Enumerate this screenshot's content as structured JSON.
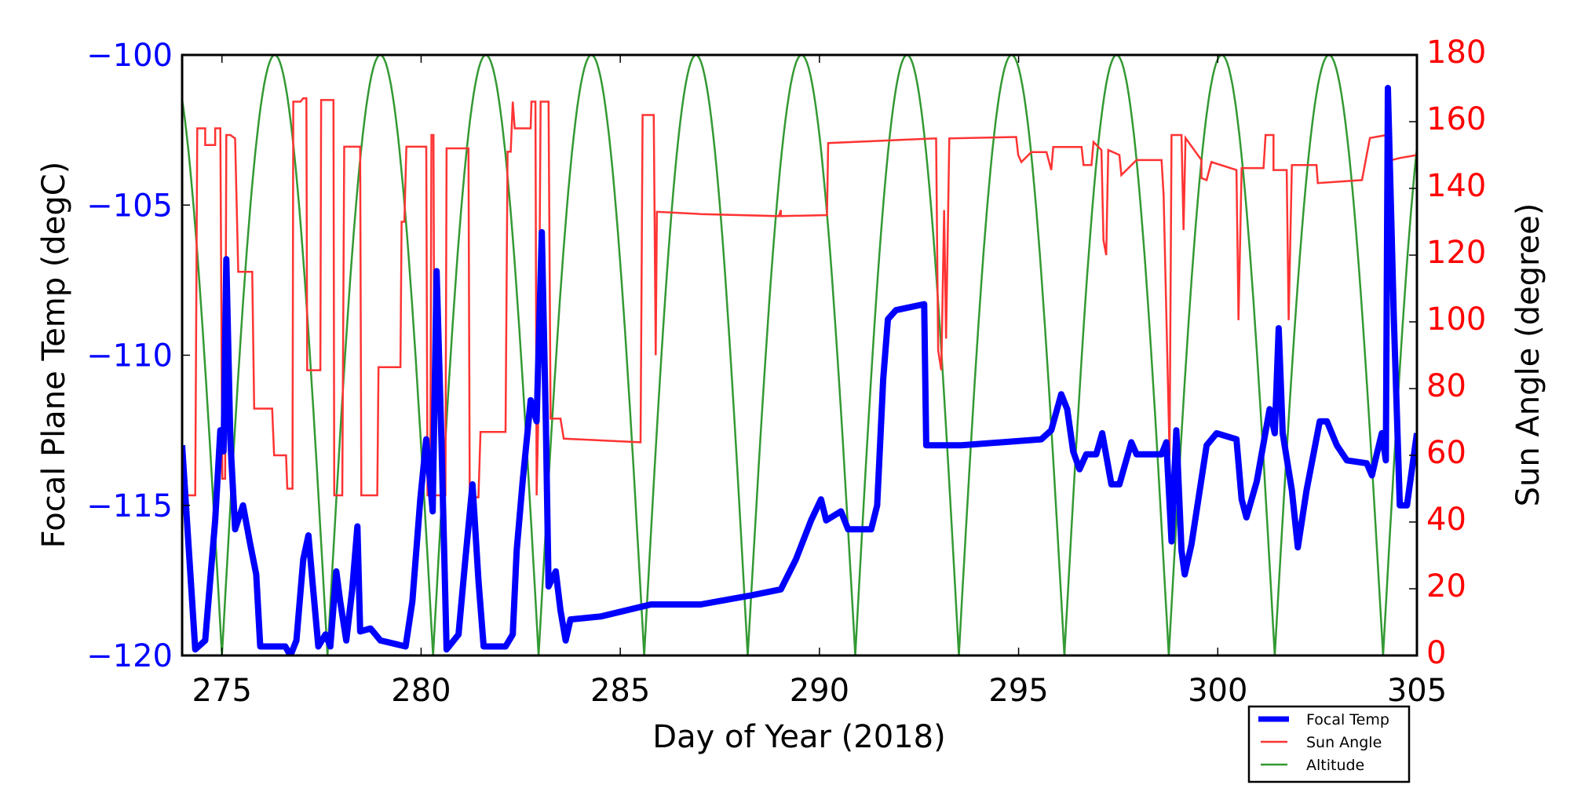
{
  "chart_data": {
    "type": "line",
    "xlabel": "Day of Year (2018)",
    "ylabel_left": "Focal Plane Temp (degC)",
    "ylabel_right": "Sun Angle (degree)",
    "xlim": [
      274,
      305
    ],
    "ylim_left": [
      -120,
      -100
    ],
    "ylim_right": [
      0,
      180
    ],
    "x_ticks": [
      275,
      280,
      285,
      290,
      295,
      300,
      305
    ],
    "y_ticks_left": [
      -120,
      -115,
      -110,
      -105,
      -100
    ],
    "y_tick_labels_left": [
      "−120",
      "−115",
      "−110",
      "−105",
      "−100"
    ],
    "y_ticks_right": [
      0,
      20,
      40,
      60,
      80,
      100,
      120,
      140,
      160,
      180
    ],
    "grid": false,
    "legend_placement": "below-right",
    "colors": {
      "focal": "#0000ff",
      "sun": "#ff3333",
      "altitude": "#339933",
      "left_axis": "#0000ff",
      "right_axis": "#ff0000"
    },
    "series": [
      {
        "name": "Focal Temp",
        "axis": "left",
        "points": [
          [
            274.0,
            -113.0
          ],
          [
            274.33,
            -119.8
          ],
          [
            274.58,
            -119.5
          ],
          [
            274.83,
            -115.5
          ],
          [
            274.96,
            -112.5
          ],
          [
            275.04,
            -113.2
          ],
          [
            275.11,
            -106.8
          ],
          [
            275.21,
            -112.8
          ],
          [
            275.33,
            -115.8
          ],
          [
            275.53,
            -115.0
          ],
          [
            275.71,
            -116.3
          ],
          [
            275.86,
            -117.3
          ],
          [
            275.96,
            -119.7
          ],
          [
            276.59,
            -119.7
          ],
          [
            276.72,
            -120.0
          ],
          [
            276.87,
            -119.5
          ],
          [
            277.04,
            -116.8
          ],
          [
            277.17,
            -116.0
          ],
          [
            277.27,
            -117.5
          ],
          [
            277.42,
            -119.7
          ],
          [
            277.6,
            -119.3
          ],
          [
            277.72,
            -119.7
          ],
          [
            277.87,
            -117.2
          ],
          [
            277.97,
            -118.2
          ],
          [
            278.12,
            -119.5
          ],
          [
            278.27,
            -117.8
          ],
          [
            278.4,
            -115.7
          ],
          [
            278.47,
            -119.2
          ],
          [
            278.73,
            -119.1
          ],
          [
            278.98,
            -119.5
          ],
          [
            279.61,
            -119.7
          ],
          [
            279.78,
            -118.2
          ],
          [
            279.98,
            -114.8
          ],
          [
            280.13,
            -112.8
          ],
          [
            280.29,
            -115.2
          ],
          [
            280.39,
            -107.2
          ],
          [
            280.51,
            -112.8
          ],
          [
            280.64,
            -119.8
          ],
          [
            280.94,
            -119.3
          ],
          [
            281.11,
            -116.8
          ],
          [
            281.29,
            -114.3
          ],
          [
            281.44,
            -117.5
          ],
          [
            281.57,
            -119.7
          ],
          [
            282.12,
            -119.7
          ],
          [
            282.3,
            -119.3
          ],
          [
            282.4,
            -116.5
          ],
          [
            282.55,
            -114.2
          ],
          [
            282.75,
            -111.5
          ],
          [
            282.9,
            -112.2
          ],
          [
            283.03,
            -105.9
          ],
          [
            283.13,
            -112.2
          ],
          [
            283.2,
            -117.7
          ],
          [
            283.38,
            -117.2
          ],
          [
            283.5,
            -118.5
          ],
          [
            283.63,
            -119.5
          ],
          [
            283.75,
            -118.8
          ],
          [
            284.51,
            -118.7
          ],
          [
            285.77,
            -118.3
          ],
          [
            287.02,
            -118.3
          ],
          [
            288.28,
            -118.0
          ],
          [
            289.03,
            -117.8
          ],
          [
            289.41,
            -116.8
          ],
          [
            289.79,
            -115.5
          ],
          [
            290.04,
            -114.8
          ],
          [
            290.17,
            -115.5
          ],
          [
            290.54,
            -115.2
          ],
          [
            290.72,
            -115.8
          ],
          [
            291.3,
            -115.8
          ],
          [
            291.45,
            -115.0
          ],
          [
            291.6,
            -110.8
          ],
          [
            291.72,
            -108.8
          ],
          [
            291.92,
            -108.5
          ],
          [
            292.63,
            -108.3
          ],
          [
            292.68,
            -113.0
          ],
          [
            293.56,
            -113.0
          ],
          [
            295.57,
            -112.8
          ],
          [
            295.82,
            -112.5
          ],
          [
            296.07,
            -111.3
          ],
          [
            296.22,
            -111.8
          ],
          [
            296.37,
            -113.2
          ],
          [
            296.53,
            -113.8
          ],
          [
            296.7,
            -113.3
          ],
          [
            296.95,
            -113.3
          ],
          [
            297.1,
            -112.6
          ],
          [
            297.33,
            -114.3
          ],
          [
            297.53,
            -114.3
          ],
          [
            297.68,
            -113.6
          ],
          [
            297.83,
            -112.9
          ],
          [
            297.96,
            -113.3
          ],
          [
            298.59,
            -113.3
          ],
          [
            298.71,
            -112.9
          ],
          [
            298.84,
            -116.2
          ],
          [
            298.96,
            -112.5
          ],
          [
            299.09,
            -116.5
          ],
          [
            299.17,
            -117.3
          ],
          [
            299.34,
            -116.3
          ],
          [
            299.72,
            -113.0
          ],
          [
            299.97,
            -112.6
          ],
          [
            300.47,
            -112.8
          ],
          [
            300.6,
            -114.8
          ],
          [
            300.72,
            -115.4
          ],
          [
            300.98,
            -114.2
          ],
          [
            301.3,
            -111.8
          ],
          [
            301.43,
            -112.6
          ],
          [
            301.53,
            -109.1
          ],
          [
            301.63,
            -112.6
          ],
          [
            301.86,
            -114.5
          ],
          [
            302.01,
            -116.4
          ],
          [
            302.23,
            -114.5
          ],
          [
            302.56,
            -112.2
          ],
          [
            302.74,
            -112.2
          ],
          [
            302.99,
            -113.0
          ],
          [
            303.24,
            -113.5
          ],
          [
            303.74,
            -113.6
          ],
          [
            303.87,
            -114.0
          ],
          [
            303.99,
            -113.3
          ],
          [
            304.12,
            -112.6
          ],
          [
            304.22,
            -113.5
          ],
          [
            304.27,
            -101.1
          ],
          [
            304.42,
            -108.8
          ],
          [
            304.57,
            -115.0
          ],
          [
            304.75,
            -115.0
          ],
          [
            305.0,
            -112.6
          ]
        ]
      },
      {
        "name": "Sun Angle",
        "axis": "right",
        "points": [
          [
            274.0,
            48
          ],
          [
            274.33,
            48
          ],
          [
            274.38,
            158
          ],
          [
            274.58,
            158
          ],
          [
            274.58,
            153
          ],
          [
            274.83,
            153
          ],
          [
            274.83,
            158
          ],
          [
            274.96,
            158
          ],
          [
            275.01,
            53
          ],
          [
            275.08,
            53
          ],
          [
            275.11,
            156
          ],
          [
            275.21,
            156
          ],
          [
            275.33,
            155
          ],
          [
            275.41,
            115
          ],
          [
            275.76,
            115
          ],
          [
            275.81,
            74
          ],
          [
            276.26,
            74
          ],
          [
            276.31,
            60
          ],
          [
            276.61,
            60
          ],
          [
            276.64,
            50
          ],
          [
            276.77,
            50
          ],
          [
            276.79,
            166
          ],
          [
            276.97,
            166
          ],
          [
            277.04,
            167
          ],
          [
            277.12,
            167
          ],
          [
            277.14,
            85.5
          ],
          [
            277.47,
            85.5
          ],
          [
            277.49,
            166.5
          ],
          [
            277.8,
            166.5
          ],
          [
            277.82,
            48
          ],
          [
            278.02,
            48
          ],
          [
            278.07,
            152.5
          ],
          [
            278.47,
            152.5
          ],
          [
            278.5,
            48
          ],
          [
            278.9,
            48
          ],
          [
            278.93,
            86.4
          ],
          [
            279.48,
            86.4
          ],
          [
            279.51,
            130
          ],
          [
            279.58,
            130
          ],
          [
            279.63,
            152.5
          ],
          [
            280.13,
            152.5
          ],
          [
            280.16,
            48
          ],
          [
            280.23,
            48
          ],
          [
            280.26,
            156
          ],
          [
            280.31,
            156
          ],
          [
            280.34,
            48
          ],
          [
            280.61,
            48
          ],
          [
            280.64,
            152
          ],
          [
            281.19,
            152
          ],
          [
            281.22,
            47.4
          ],
          [
            281.44,
            47.4
          ],
          [
            281.49,
            67
          ],
          [
            282.12,
            67
          ],
          [
            282.17,
            151
          ],
          [
            282.25,
            151
          ],
          [
            282.3,
            166
          ],
          [
            282.35,
            158
          ],
          [
            282.75,
            158
          ],
          [
            282.77,
            166
          ],
          [
            282.87,
            166
          ],
          [
            282.9,
            48
          ],
          [
            282.95,
            76
          ],
          [
            283.0,
            166
          ],
          [
            283.2,
            166
          ],
          [
            283.25,
            71
          ],
          [
            283.5,
            71
          ],
          [
            283.58,
            65
          ],
          [
            285.51,
            63.9
          ],
          [
            285.56,
            162
          ],
          [
            285.84,
            162
          ],
          [
            285.89,
            90
          ],
          [
            285.92,
            133
          ],
          [
            287.02,
            132.3
          ],
          [
            288.98,
            131.7
          ],
          [
            289.03,
            133.5
          ],
          [
            289.03,
            131.7
          ],
          [
            290.19,
            132
          ],
          [
            290.22,
            153.6
          ],
          [
            292.93,
            155
          ],
          [
            292.98,
            91.5
          ],
          [
            293.06,
            85.5
          ],
          [
            293.13,
            133.5
          ],
          [
            293.18,
            95
          ],
          [
            293.26,
            155
          ],
          [
            294.94,
            155.4
          ],
          [
            294.99,
            150
          ],
          [
            295.07,
            147.9
          ],
          [
            295.32,
            150.9
          ],
          [
            295.7,
            150.9
          ],
          [
            295.82,
            145.5
          ],
          [
            295.87,
            152.4
          ],
          [
            296.58,
            152.4
          ],
          [
            296.63,
            147
          ],
          [
            296.83,
            147
          ],
          [
            296.88,
            153.9
          ],
          [
            297.08,
            151.5
          ],
          [
            297.13,
            124.5
          ],
          [
            297.2,
            120
          ],
          [
            297.25,
            151.5
          ],
          [
            297.53,
            150
          ],
          [
            297.58,
            144
          ],
          [
            297.96,
            148.5
          ],
          [
            298.59,
            148.5
          ],
          [
            298.64,
            138
          ],
          [
            298.79,
            60
          ],
          [
            298.84,
            156
          ],
          [
            299.09,
            156
          ],
          [
            299.14,
            127.5
          ],
          [
            299.19,
            155.1
          ],
          [
            299.59,
            148.5
          ],
          [
            299.59,
            143.1
          ],
          [
            299.72,
            142.5
          ],
          [
            299.84,
            147.9
          ],
          [
            300.47,
            145.5
          ],
          [
            300.52,
            100.5
          ],
          [
            300.6,
            146.1
          ],
          [
            301.15,
            146.1
          ],
          [
            301.2,
            156
          ],
          [
            301.4,
            156
          ],
          [
            301.4,
            145.5
          ],
          [
            301.73,
            145.5
          ],
          [
            301.78,
            100.5
          ],
          [
            301.86,
            147
          ],
          [
            302.48,
            147
          ],
          [
            302.51,
            141.6
          ],
          [
            303.62,
            142.5
          ],
          [
            303.82,
            155.1
          ],
          [
            304.24,
            156
          ],
          [
            304.37,
            148.5
          ],
          [
            304.57,
            149.1
          ],
          [
            305.0,
            150
          ]
        ]
      },
      {
        "name": "Altitude",
        "axis": "right",
        "peak": 180,
        "zero_crossings": [
          272.35,
          275.0,
          277.65,
          280.3,
          282.95,
          285.6,
          288.2,
          290.9,
          293.5,
          296.15,
          298.77,
          301.43,
          304.15,
          306.8
        ]
      }
    ],
    "legend": [
      "Focal Temp",
      "Sun Angle",
      "Altitude"
    ]
  }
}
